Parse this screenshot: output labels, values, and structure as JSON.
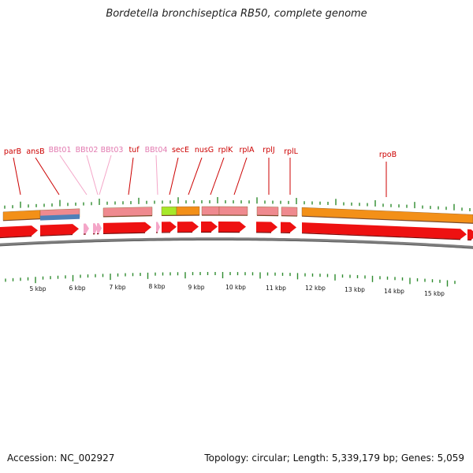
{
  "title": "Bordetella bronchiseptica RB50, complete genome",
  "accession_text": "Accession: NC_002927",
  "summary_text": "Topology: circular; Length: 5,339,179 bp; Genes: 5,059",
  "colors": {
    "gene_red": "#ee1111",
    "gene_pink": "#f4a6c8",
    "label_red": "#cc0000",
    "label_pink": "#e27ab0",
    "orange": "#f39018",
    "salmon": "#ef8a8f",
    "blue": "#4f80b8",
    "lime": "#a6e82a",
    "tick_green": "#2e8b2e",
    "backbone": "#808080"
  },
  "gene_labels": [
    {
      "text": "parB",
      "kind": "red"
    },
    {
      "text": "ansB",
      "kind": "red"
    },
    {
      "text": "BBt01",
      "kind": "pink"
    },
    {
      "text": "BBt02",
      "kind": "pink"
    },
    {
      "text": "BBt03",
      "kind": "pink"
    },
    {
      "text": "tuf",
      "kind": "red"
    },
    {
      "text": "BBt04",
      "kind": "pink"
    },
    {
      "text": "secE",
      "kind": "red"
    },
    {
      "text": "nusG",
      "kind": "red"
    },
    {
      "text": "rplK",
      "kind": "red"
    },
    {
      "text": "rplA",
      "kind": "red"
    },
    {
      "text": "rplJ",
      "kind": "red"
    },
    {
      "text": "rplL",
      "kind": "red"
    },
    {
      "text": "rpoB",
      "kind": "red"
    }
  ],
  "kbp_labels": [
    "5 kbp",
    "6 kbp",
    "7 kbp",
    "8 kbp",
    "9 kbp",
    "10 kbp",
    "11 kbp",
    "12 kbp",
    "13 kbp",
    "14 kbp",
    "15 kbp"
  ]
}
